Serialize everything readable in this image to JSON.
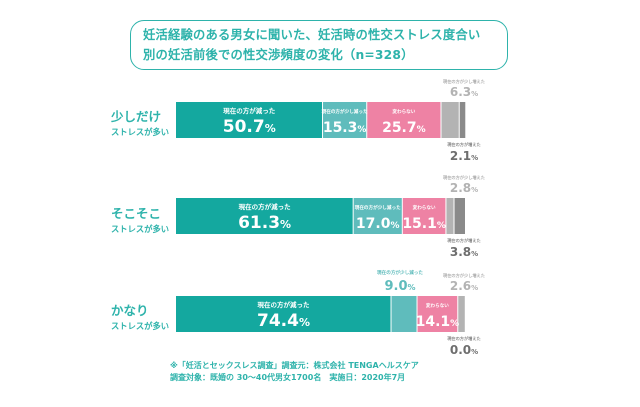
{
  "title_lines": [
    "妊活経験のある男女に聞いた、妊活時の性交ストレス度合い",
    "別の妊活前後での性交渉頻度の変化（n=328）"
  ],
  "footer_lines": [
    "※「妊活とセックスレス調査」調査元：株式会社 TENGAヘルスケア",
    "調査対象：既婚の 30～40代男女1700名　実施日：2020年7月"
  ],
  "colors": {
    "teal": "#14a89f",
    "mid_teal": "#5fbcbc",
    "pink": "#ee82a4",
    "light_gray": "#b3b3b3",
    "dark_gray": "#8a8a8a",
    "title_teal": "#2eb3ab"
  },
  "chart_data": {
    "type": "bar",
    "orientation": "horizontal",
    "stacked": true,
    "categories": [
      {
        "label_main": "少しだけ",
        "label_sub": "ストレスが多い"
      },
      {
        "label_main": "そこそこ",
        "label_sub": "ストレスが多い"
      },
      {
        "label_main": "かなり",
        "label_sub": "ストレスが多い"
      }
    ],
    "series": [
      {
        "name": "現在の方が減った",
        "color": "#14a89f",
        "values": [
          50.7,
          61.3,
          74.4
        ]
      },
      {
        "name": "現在の方が少し減った",
        "color": "#5fbcbc",
        "values": [
          15.3,
          17.0,
          9.0
        ]
      },
      {
        "name": "変わらない",
        "color": "#ee82a4",
        "values": [
          25.7,
          15.1,
          14.1
        ]
      },
      {
        "name": "現在の方が少し増えた",
        "color": "#b3b3b3",
        "values": [
          6.3,
          2.8,
          2.6
        ]
      },
      {
        "name": "現在の方が増えた",
        "color": "#8a8a8a",
        "values": [
          2.1,
          3.8,
          0.0
        ]
      }
    ],
    "value_suffix": "%",
    "xlim": [
      0,
      100
    ]
  }
}
